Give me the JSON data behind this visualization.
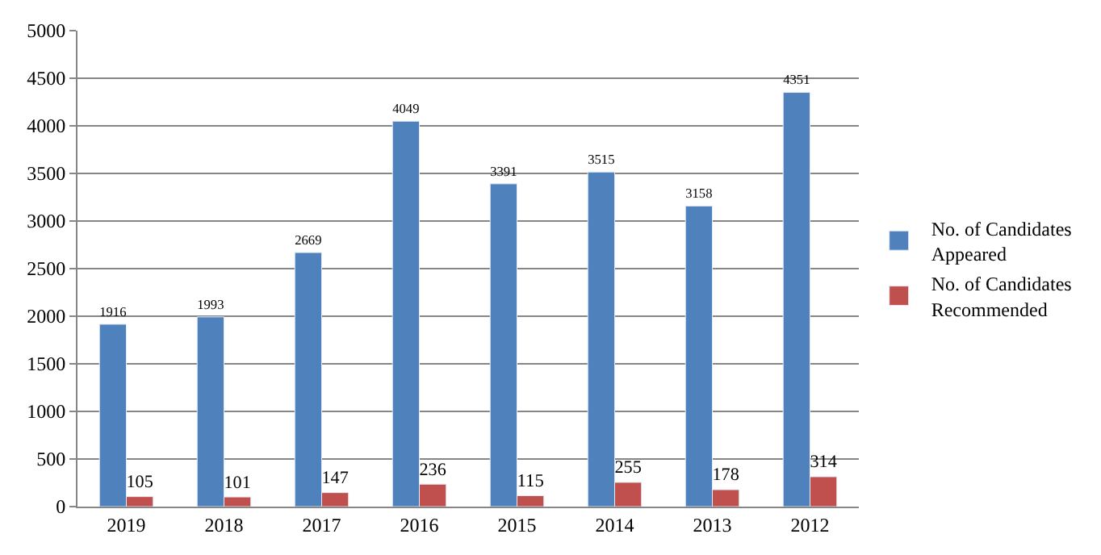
{
  "chart_data": {
    "type": "bar",
    "categories": [
      "2019",
      "2018",
      "2017",
      "2016",
      "2015",
      "2014",
      "2013",
      "2012"
    ],
    "series": [
      {
        "name": "No. of Candidates Appeared",
        "color": "#4f81bd",
        "values": [
          1916,
          1993,
          2669,
          4049,
          3391,
          3515,
          3158,
          4351
        ]
      },
      {
        "name": "No. of Candidates Recommended",
        "color": "#c0504d",
        "values": [
          105,
          101,
          147,
          236,
          115,
          255,
          178,
          314
        ]
      }
    ],
    "ylim": [
      0,
      5000
    ],
    "yticks": [
      0,
      500,
      1000,
      1500,
      2000,
      2500,
      3000,
      3500,
      4000,
      4500,
      5000
    ],
    "grid": "y",
    "legend": "right",
    "data_labels": true
  }
}
